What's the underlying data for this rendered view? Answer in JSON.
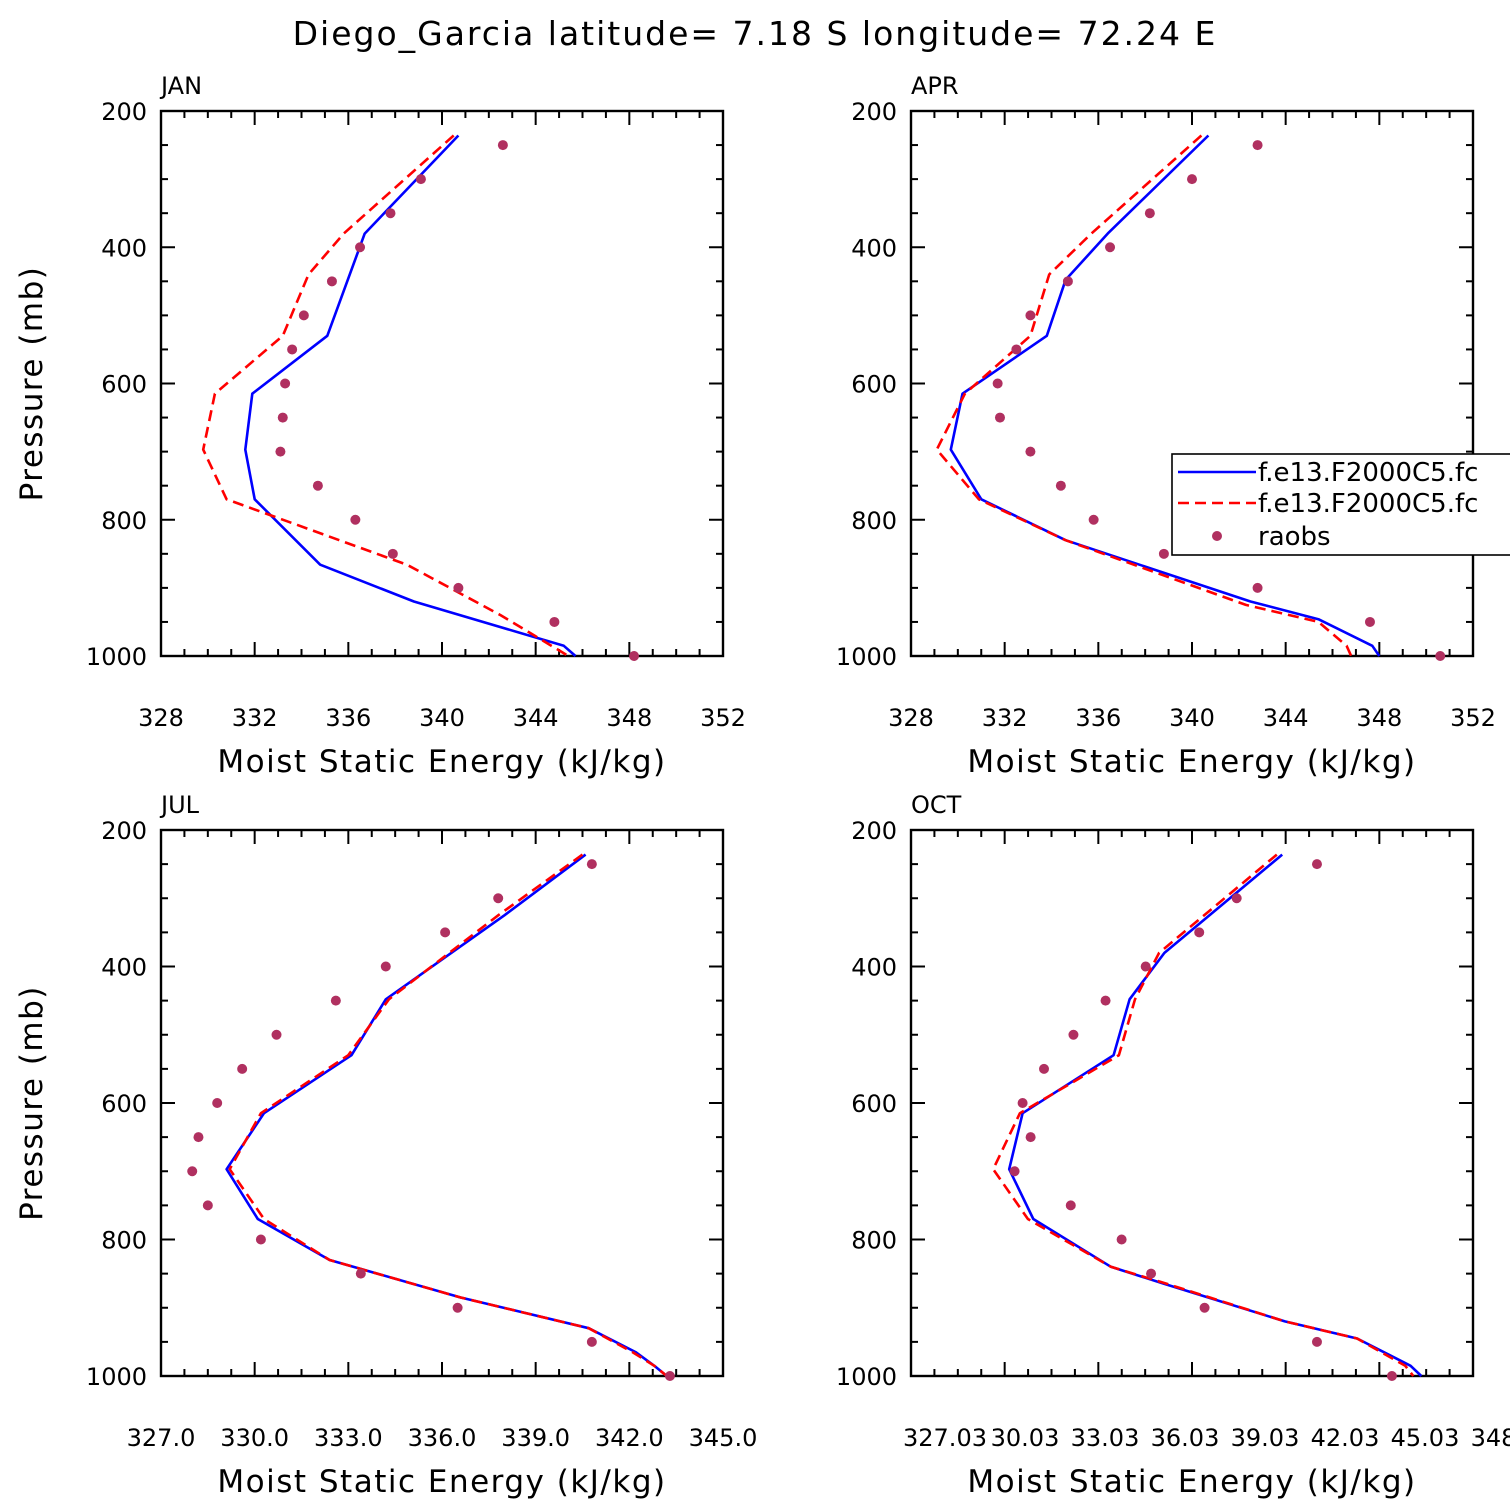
{
  "title": "Diego_Garcia  latitude= 7.18 S longitude= 72.24 E",
  "colors": {
    "model1": "#0000ff",
    "model2": "#ff0000",
    "obs": "#b03060"
  },
  "legend": [
    "f.e13.F2000C5.fc",
    "f.e13.F2000C5.fc",
    "raobs"
  ],
  "chart_data": [
    {
      "type": "line",
      "panel_label": "JAN",
      "xlabel": "Moist Static Energy (kJ/kg)",
      "ylabel": "Pressure (mb)",
      "xlim": [
        328,
        352
      ],
      "ylim": [
        1000,
        200
      ],
      "xticks": [
        "328",
        "332",
        "336",
        "340",
        "344",
        "348",
        "352"
      ],
      "yticks": [
        "200",
        "400",
        "600",
        "800",
        "1000"
      ],
      "series": [
        {
          "style": "solid",
          "x": [
            340.7,
            336.7,
            335.1,
            331.9,
            331.6,
            332.0,
            334.8,
            338.8,
            345.2,
            345.7
          ],
          "y": [
            236,
            380,
            530,
            615,
            697,
            770,
            866,
            920,
            985,
            1000
          ]
        },
        {
          "style": "dashed",
          "x": [
            340.5,
            335.8,
            334.3,
            333.2,
            330.3,
            329.8,
            330.8,
            338.5,
            342.5,
            345.4
          ],
          "y": [
            236,
            380,
            440,
            530,
            615,
            697,
            770,
            866,
            940,
            1000
          ]
        },
        {
          "style": "dots",
          "x": [
            342.6,
            339.1,
            337.8,
            336.5,
            335.3,
            334.1,
            333.6,
            333.3,
            333.2,
            333.1,
            334.7,
            336.3,
            337.9,
            340.7,
            344.8,
            348.2
          ],
          "y": [
            250,
            300,
            350,
            400,
            450,
            500,
            550,
            600,
            650,
            700,
            750,
            800,
            850,
            900,
            950,
            1000
          ]
        }
      ]
    },
    {
      "type": "line",
      "panel_label": "APR",
      "xlabel": "Moist Static Energy (kJ/kg)",
      "ylabel": "",
      "xlim": [
        328,
        352
      ],
      "ylim": [
        1000,
        200
      ],
      "xticks": [
        "328",
        "332",
        "336",
        "340",
        "344",
        "348",
        "352"
      ],
      "yticks": [
        "200",
        "400",
        "600",
        "800",
        "1000"
      ],
      "series": [
        {
          "style": "solid",
          "x": [
            340.7,
            336.4,
            334.6,
            333.8,
            330.2,
            329.7,
            331.0,
            334.6,
            342.5,
            345.4,
            347.7,
            348.0
          ],
          "y": [
            236,
            380,
            448,
            530,
            615,
            697,
            770,
            830,
            920,
            946,
            985,
            1000
          ]
        },
        {
          "style": "dashed",
          "x": [
            340.4,
            335.7,
            333.9,
            333.1,
            330.3,
            329.1,
            330.9,
            334.6,
            342.3,
            345.4,
            346.6,
            346.8
          ],
          "y": [
            236,
            380,
            440,
            530,
            615,
            697,
            770,
            830,
            925,
            950,
            985,
            1000
          ]
        },
        {
          "style": "dots",
          "x": [
            342.8,
            340.0,
            338.2,
            336.5,
            334.7,
            333.1,
            332.5,
            331.7,
            331.8,
            333.1,
            334.4,
            335.8,
            338.8,
            342.8,
            347.6,
            350.6
          ],
          "y": [
            250,
            300,
            350,
            400,
            450,
            500,
            550,
            600,
            650,
            700,
            750,
            800,
            850,
            900,
            950,
            1000
          ]
        }
      ]
    },
    {
      "type": "line",
      "panel_label": "JUL",
      "xlabel": "Moist Static Energy (kJ/kg)",
      "ylabel": "Pressure (mb)",
      "xlim": [
        327.0,
        345.0
      ],
      "ylim": [
        1000,
        200
      ],
      "xticks": [
        "327.0",
        "330.0",
        "333.0",
        "336.0",
        "339.0",
        "342.0",
        "345.0"
      ],
      "yticks": [
        "200",
        "400",
        "600",
        "800",
        "1000"
      ],
      "series": [
        {
          "style": "solid",
          "x": [
            340.6,
            338.0,
            334.2,
            333.1,
            330.3,
            329.1,
            330.1,
            332.4,
            336.6,
            340.7,
            342.2,
            342.8,
            343.2
          ],
          "y": [
            236,
            325,
            448,
            530,
            615,
            697,
            770,
            830,
            885,
            930,
            965,
            985,
            1000
          ]
        },
        {
          "style": "dashed",
          "x": [
            340.5,
            337.8,
            334.3,
            333.0,
            330.2,
            329.2,
            330.3,
            332.4,
            336.6,
            340.7,
            342.1,
            342.8,
            343.2
          ],
          "y": [
            236,
            325,
            448,
            530,
            615,
            697,
            770,
            830,
            885,
            930,
            965,
            985,
            1000
          ]
        },
        {
          "style": "dots",
          "x": [
            340.8,
            337.8,
            336.1,
            334.2,
            332.6,
            330.7,
            329.6,
            328.8,
            328.2,
            328.0,
            328.5,
            330.2,
            333.4,
            336.5,
            340.8,
            343.3
          ],
          "y": [
            250,
            300,
            350,
            400,
            450,
            500,
            550,
            600,
            650,
            700,
            750,
            800,
            850,
            900,
            950,
            1000
          ]
        }
      ]
    },
    {
      "type": "line",
      "panel_label": "OCT",
      "xlabel": "Moist Static Energy (kJ/kg)",
      "ylabel": "",
      "xlim": [
        327.03,
        348.03
      ],
      "ylim": [
        1000,
        200
      ],
      "xticks": [
        "327.03",
        "30.03",
        "33.03",
        "36.03",
        "39.03",
        "42.03",
        "45.03",
        "348.0"
      ],
      "yticks": [
        "200",
        "400",
        "600",
        "800",
        "1000"
      ],
      "series": [
        {
          "style": "solid",
          "x": [
            340.9,
            336.5,
            335.2,
            334.6,
            331.2,
            330.7,
            331.6,
            334.5,
            336.5,
            341.0,
            343.7,
            345.7,
            346.1
          ],
          "y": [
            236,
            380,
            448,
            530,
            615,
            697,
            770,
            840,
            865,
            920,
            945,
            985,
            1000
          ]
        },
        {
          "style": "dashed",
          "x": [
            340.7,
            336.3,
            335.4,
            334.8,
            331.1,
            330.1,
            331.4,
            334.5,
            336.6,
            341.0,
            343.7,
            345.5,
            345.8
          ],
          "y": [
            236,
            380,
            448,
            530,
            615,
            697,
            770,
            840,
            865,
            920,
            945,
            985,
            1000
          ]
        },
        {
          "style": "dots",
          "x": [
            342.2,
            339.2,
            337.8,
            335.8,
            334.3,
            333.1,
            332.0,
            331.2,
            331.5,
            330.9,
            333.0,
            334.9,
            336.0,
            338.0,
            342.2,
            345.0
          ],
          "y": [
            250,
            300,
            350,
            400,
            450,
            500,
            550,
            600,
            650,
            700,
            750,
            800,
            850,
            900,
            950,
            1000
          ]
        }
      ]
    }
  ]
}
